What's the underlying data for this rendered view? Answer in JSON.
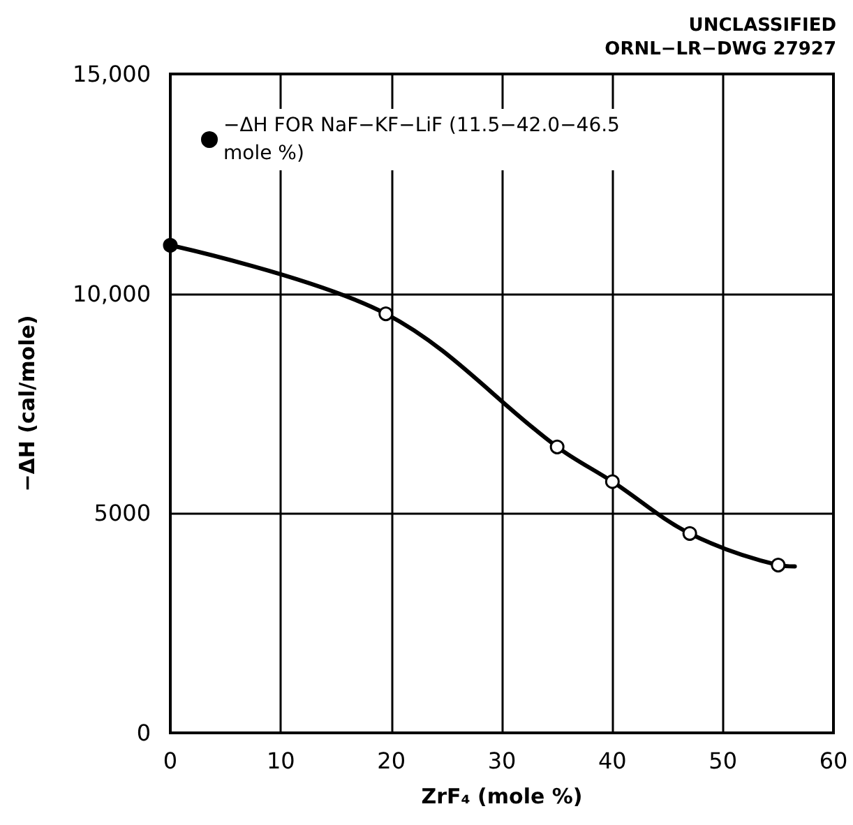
{
  "chart_data": {
    "type": "line",
    "xlabel": "ZrF₄ (mole %)",
    "ylabel": "−ΔH (cal/mole)",
    "annotations": [
      "UNCLASSIFIED",
      "ORNL−LR−DWG 27927"
    ],
    "xlim": [
      0,
      60
    ],
    "xticks": [
      0,
      10,
      20,
      30,
      40,
      50,
      60
    ],
    "ylim": [
      0,
      15000
    ],
    "yticks": [
      0,
      5000,
      {
        "value": 10000,
        "label": "10,000"
      },
      {
        "value": 15000,
        "label": "15,000"
      }
    ],
    "grid": true,
    "legend": "top left",
    "series": [
      {
        "color": "#000000",
        "marker": "none",
        "x": [
          0,
          19.5,
          35,
          40,
          47,
          55,
          56.5
        ],
        "values": [
          11100,
          9540,
          6510,
          5720,
          4540,
          3820,
          3790
        ]
      },
      {
        "type": "scatter",
        "name": "−ΔH FOR NaF−KF−LiF (11.5−42.0−46.5 mole %)",
        "color": "#000000",
        "marker": "circle",
        "x": [
          0
        ],
        "values": [
          11100
        ]
      },
      {
        "type": "scatter",
        "color": "#ffffff",
        "marker": "circle",
        "x": [
          19.5,
          35,
          40,
          47,
          55
        ],
        "values": [
          9540,
          6510,
          5720,
          4540,
          3820
        ]
      }
    ]
  }
}
